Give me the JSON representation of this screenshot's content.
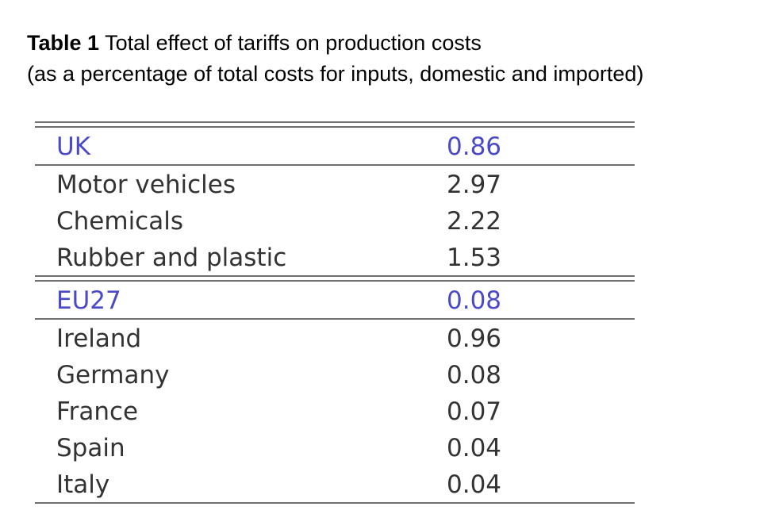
{
  "caption": {
    "label": "Table 1",
    "title": "Total effect of tariffs on production costs",
    "subtitle": "(as a percentage of total costs for inputs, domestic and imported)"
  },
  "colors": {
    "header_text": "#4a4ac8",
    "body_text": "#333333",
    "rule": "#6e6e6e"
  },
  "table": {
    "groups": [
      {
        "header": {
          "name": "UK",
          "value": "0.86"
        },
        "rows": [
          {
            "name": "Motor vehicles",
            "value": "2.97"
          },
          {
            "name": "Chemicals",
            "value": "2.22"
          },
          {
            "name": "Rubber and plastic",
            "value": "1.53"
          }
        ]
      },
      {
        "header": {
          "name": "EU27",
          "value": "0.08"
        },
        "rows": [
          {
            "name": "Ireland",
            "value": "0.96"
          },
          {
            "name": "Germany",
            "value": "0.08"
          },
          {
            "name": "France",
            "value": "0.07"
          },
          {
            "name": "Spain",
            "value": "0.04"
          },
          {
            "name": "Italy",
            "value": "0.04"
          }
        ]
      }
    ]
  }
}
